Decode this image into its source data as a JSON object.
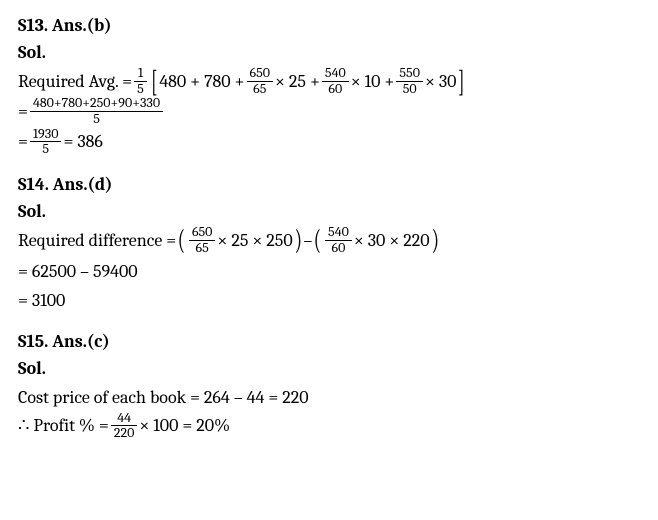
{
  "s13": {
    "heading": "S13. Ans.(b)",
    "sol_label": "Sol.",
    "prefix": "Required Avg. = ",
    "frac_onefifth": {
      "num": "1",
      "den": "5"
    },
    "term1": "480 + 780 + ",
    "frac_650_65": {
      "num": "650",
      "den": "65"
    },
    "mult25": " × 25 + ",
    "frac_540_60": {
      "num": "540",
      "den": "60"
    },
    "mult10": " × 10 + ",
    "frac_550_50": {
      "num": "550",
      "den": "50"
    },
    "mult30": " × 30",
    "line2_prefix": "= ",
    "frac_sum": {
      "num": "480+780+250+90+330",
      "den": "5"
    },
    "line3_prefix": "= ",
    "frac_1930": {
      "num": "1930",
      "den": "5"
    },
    "result": " = 386"
  },
  "s14": {
    "heading": "S14. Ans.(d)",
    "sol_label": "Sol.",
    "prefix": "Required difference = ",
    "frac_650_65": {
      "num": "650",
      "den": "65"
    },
    "term1_rest": " × 25 × 250",
    "minus": " – ",
    "frac_540_60": {
      "num": "540",
      "den": "60"
    },
    "term2_rest": " × 30 × 220",
    "line2": "= 62500 – 59400",
    "line3": "= 3100"
  },
  "s15": {
    "heading": "S15. Ans.(c)",
    "sol_label": "Sol.",
    "line1": "Cost price of each book = 264 – 44 = 220",
    "line2_prefix": "∴ Profit % = ",
    "frac_44_220": {
      "num": "44",
      "den": "220"
    },
    "line2_suffix": " × 100 = 20%"
  }
}
